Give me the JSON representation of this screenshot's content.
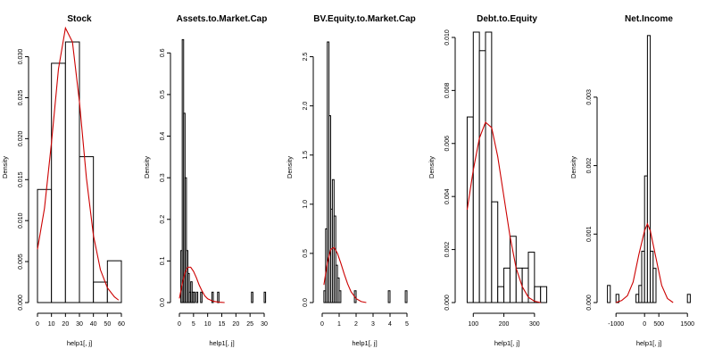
{
  "chart_data": [
    {
      "type": "bar",
      "title": "Stock",
      "xlabel": "help1[, j]",
      "ylabel": "Density",
      "xlim": [
        0,
        60
      ],
      "ylim": [
        0,
        0.033
      ],
      "xticks": [
        0,
        10,
        20,
        30,
        40,
        50,
        60
      ],
      "yticks": [
        0.0,
        0.005,
        0.01,
        0.015,
        0.02,
        0.025,
        0.03
      ],
      "ytick_labels": [
        "0.000",
        "0.005",
        "0.010",
        "0.015",
        "0.020",
        "0.025",
        "0.030"
      ],
      "bins": [
        {
          "x0": 0,
          "x1": 10,
          "density": 0.0138
        },
        {
          "x0": 10,
          "x1": 20,
          "density": 0.0292
        },
        {
          "x0": 20,
          "x1": 30,
          "density": 0.0318
        },
        {
          "x0": 30,
          "x1": 40,
          "density": 0.0178
        },
        {
          "x0": 40,
          "x1": 50,
          "density": 0.0025
        },
        {
          "x0": 50,
          "x1": 60,
          "density": 0.0051
        }
      ],
      "density_curve": {
        "x": [
          0,
          5,
          10,
          15,
          20,
          25,
          30,
          35,
          40,
          45,
          50,
          55,
          58
        ],
        "y": [
          0.0065,
          0.0115,
          0.0195,
          0.0285,
          0.0335,
          0.0318,
          0.0245,
          0.0152,
          0.0082,
          0.004,
          0.0018,
          0.0007,
          0.0003
        ]
      }
    },
    {
      "type": "bar",
      "title": "Assets.to.Market.Cap",
      "xlabel": "help1[, j]",
      "ylabel": "Density",
      "xlim": [
        0,
        30
      ],
      "ylim": [
        0,
        0.65
      ],
      "xticks": [
        0,
        5,
        10,
        15,
        20,
        25,
        30
      ],
      "yticks": [
        0.0,
        0.1,
        0.2,
        0.3,
        0.4,
        0.5,
        0.6
      ],
      "ytick_labels": [
        "0.0",
        "0.1",
        "0.2",
        "0.3",
        "0.4",
        "0.5",
        "0.6"
      ],
      "bins": [
        {
          "x0": 0.5,
          "x1": 1.0,
          "density": 0.125
        },
        {
          "x0": 1.0,
          "x1": 1.5,
          "density": 0.632
        },
        {
          "x0": 1.5,
          "x1": 2.0,
          "density": 0.455
        },
        {
          "x0": 2.0,
          "x1": 2.5,
          "density": 0.3
        },
        {
          "x0": 2.5,
          "x1": 3.0,
          "density": 0.125
        },
        {
          "x0": 3.0,
          "x1": 3.5,
          "density": 0.07
        },
        {
          "x0": 3.5,
          "x1": 4.0,
          "density": 0.025
        },
        {
          "x0": 4.0,
          "x1": 4.5,
          "density": 0.05
        },
        {
          "x0": 4.5,
          "x1": 5.0,
          "density": 0.025
        },
        {
          "x0": 5.0,
          "x1": 5.5,
          "density": 0.025
        },
        {
          "x0": 6.0,
          "x1": 6.5,
          "density": 0.025
        },
        {
          "x0": 7.5,
          "x1": 8.0,
          "density": 0.025
        },
        {
          "x0": 11.5,
          "x1": 12.0,
          "density": 0.025
        },
        {
          "x0": 13.5,
          "x1": 14.0,
          "density": 0.025
        },
        {
          "x0": 25.5,
          "x1": 26.0,
          "density": 0.025
        },
        {
          "x0": 30.0,
          "x1": 30.5,
          "density": 0.025
        }
      ],
      "density_curve": {
        "x": [
          0,
          1,
          2,
          3,
          4,
          5,
          6,
          7,
          8,
          9,
          10,
          12,
          14,
          16
        ],
        "y": [
          0.01,
          0.045,
          0.072,
          0.085,
          0.085,
          0.075,
          0.06,
          0.042,
          0.028,
          0.016,
          0.009,
          0.003,
          0.001,
          0.0
        ]
      }
    },
    {
      "type": "bar",
      "title": "BV.Equity.to.Market.Cap",
      "xlabel": "help1[, j]",
      "ylabel": "Density",
      "xlim": [
        0,
        5
      ],
      "ylim": [
        0,
        2.75
      ],
      "xticks": [
        0,
        1,
        2,
        3,
        4,
        5
      ],
      "yticks": [
        0.0,
        0.5,
        1.0,
        1.5,
        2.0,
        2.5
      ],
      "ytick_labels": [
        "0.0",
        "0.5",
        "1.0",
        "1.5",
        "2.0",
        "2.5"
      ],
      "bins": [
        {
          "x0": 0.1,
          "x1": 0.2,
          "density": 0.12
        },
        {
          "x0": 0.2,
          "x1": 0.3,
          "density": 0.75
        },
        {
          "x0": 0.3,
          "x1": 0.4,
          "density": 2.65
        },
        {
          "x0": 0.4,
          "x1": 0.5,
          "density": 1.9
        },
        {
          "x0": 0.5,
          "x1": 0.6,
          "density": 0.95
        },
        {
          "x0": 0.6,
          "x1": 0.7,
          "density": 1.25
        },
        {
          "x0": 0.7,
          "x1": 0.8,
          "density": 0.88
        },
        {
          "x0": 0.8,
          "x1": 0.9,
          "density": 0.38
        },
        {
          "x0": 0.9,
          "x1": 1.0,
          "density": 0.25
        },
        {
          "x0": 1.0,
          "x1": 1.1,
          "density": 0.12
        },
        {
          "x0": 1.9,
          "x1": 2.0,
          "density": 0.12
        },
        {
          "x0": 3.9,
          "x1": 4.0,
          "density": 0.12
        },
        {
          "x0": 4.9,
          "x1": 5.0,
          "density": 0.12
        }
      ],
      "density_curve": {
        "x": [
          0.1,
          0.3,
          0.5,
          0.7,
          0.9,
          1.1,
          1.3,
          1.5,
          1.7,
          2.0,
          2.3,
          2.6
        ],
        "y": [
          0.18,
          0.4,
          0.54,
          0.56,
          0.5,
          0.4,
          0.29,
          0.19,
          0.11,
          0.04,
          0.01,
          0.0
        ]
      }
    },
    {
      "type": "bar",
      "title": "Debt.to.Equity",
      "xlabel": "help1[, j]",
      "ylabel": "Density",
      "xlim": [
        70,
        350
      ],
      "ylim": [
        0,
        0.0102
      ],
      "xticks": [
        100,
        200,
        300
      ],
      "yticks": [
        0.0,
        0.002,
        0.004,
        0.006,
        0.008,
        0.01
      ],
      "ytick_labels": [
        "0.000",
        "0.002",
        "0.004",
        "0.006",
        "0.008",
        "0.010"
      ],
      "bins": [
        {
          "x0": 80,
          "x1": 100,
          "density": 0.007
        },
        {
          "x0": 100,
          "x1": 120,
          "density": 0.0102
        },
        {
          "x0": 120,
          "x1": 140,
          "density": 0.0095
        },
        {
          "x0": 140,
          "x1": 160,
          "density": 0.0102
        },
        {
          "x0": 160,
          "x1": 180,
          "density": 0.0038
        },
        {
          "x0": 180,
          "x1": 200,
          "density": 0.0006
        },
        {
          "x0": 200,
          "x1": 220,
          "density": 0.0013
        },
        {
          "x0": 220,
          "x1": 240,
          "density": 0.0025
        },
        {
          "x0": 240,
          "x1": 260,
          "density": 0.0013
        },
        {
          "x0": 260,
          "x1": 280,
          "density": 0.0013
        },
        {
          "x0": 280,
          "x1": 300,
          "density": 0.0019
        },
        {
          "x0": 300,
          "x1": 320,
          "density": 0.0006
        },
        {
          "x0": 320,
          "x1": 340,
          "density": 0.0006
        }
      ],
      "density_curve": {
        "x": [
          80,
          100,
          120,
          140,
          160,
          180,
          200,
          220,
          240,
          260,
          280,
          300,
          320
        ],
        "y": [
          0.0035,
          0.005,
          0.0062,
          0.0068,
          0.0066,
          0.0055,
          0.004,
          0.0025,
          0.0013,
          0.0006,
          0.0002,
          5e-05,
          0.0
        ]
      }
    },
    {
      "type": "bar",
      "title": "Net.Income",
      "xlabel": "help1[, j]",
      "ylabel": "Density",
      "xlim": [
        -1350,
        1650
      ],
      "ylim": [
        0,
        0.00395
      ],
      "xticks": [
        -1000,
        0,
        500,
        1500
      ],
      "xtick_labels": [
        "-1000",
        "0",
        "500",
        "1500"
      ],
      "yticks": [
        0.0,
        0.001,
        0.002,
        0.003
      ],
      "ytick_labels": [
        "0.000",
        "0.001",
        "0.002",
        "0.003"
      ],
      "bins": [
        {
          "x0": -1300,
          "x1": -1200,
          "density": 0.00025
        },
        {
          "x0": -1000,
          "x1": -900,
          "density": 0.00012
        },
        {
          "x0": -300,
          "x1": -200,
          "density": 0.00012
        },
        {
          "x0": -200,
          "x1": -100,
          "density": 0.00025
        },
        {
          "x0": -100,
          "x1": 0,
          "density": 0.00075
        },
        {
          "x0": 0,
          "x1": 100,
          "density": 0.00185
        },
        {
          "x0": 100,
          "x1": 200,
          "density": 0.0039
        },
        {
          "x0": 200,
          "x1": 300,
          "density": 0.00075
        },
        {
          "x0": 300,
          "x1": 400,
          "density": 0.0005
        },
        {
          "x0": 1500,
          "x1": 1600,
          "density": 0.00012
        }
      ],
      "density_curve": {
        "x": [
          -1000,
          -800,
          -600,
          -400,
          -200,
          0,
          100,
          200,
          400,
          600,
          800,
          1000
        ],
        "y": [
          0.0,
          3e-05,
          0.0001,
          0.0003,
          0.0007,
          0.00105,
          0.00115,
          0.00105,
          0.00065,
          0.00025,
          6e-05,
          0.0
        ]
      }
    }
  ]
}
